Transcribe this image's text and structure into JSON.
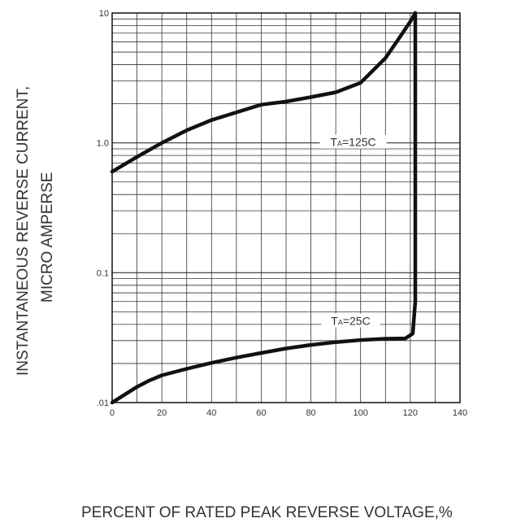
{
  "chart_data": {
    "type": "line",
    "ylabel_lines": [
      "INSTANTANEOUS REVERSE CURRENT,",
      "MICRO AMPERSE"
    ],
    "xlabel": "PERCENT OF RATED PEAK REVERSE VOLTAGE,%",
    "xlim": [
      0,
      140
    ],
    "ylim": [
      0.01,
      10
    ],
    "yscale": "log",
    "grid": true,
    "x_ticks": [
      "0",
      "20",
      "40",
      "60",
      "80",
      "100",
      "120",
      "140"
    ],
    "y_ticks": [
      ".01",
      "0.1",
      "1.0",
      "10"
    ],
    "series": [
      {
        "annotation_main": "T",
        "annotation_sub": "A",
        "annotation_rest": "=125C",
        "x": [
          0,
          10,
          20,
          30,
          40,
          50,
          60,
          70,
          80,
          90,
          100,
          110,
          115,
          120,
          122
        ],
        "y": [
          0.6,
          0.78,
          1.0,
          1.25,
          1.5,
          1.72,
          1.97,
          2.08,
          2.25,
          2.45,
          2.9,
          4.5,
          6.2,
          8.6,
          10
        ]
      },
      {
        "annotation_main": "T",
        "annotation_sub": "A",
        "annotation_rest": "=25C",
        "x": [
          0,
          5,
          10,
          15,
          20,
          30,
          40,
          50,
          60,
          70,
          80,
          90,
          100,
          110,
          118,
          121,
          122,
          122,
          122
        ],
        "y": [
          0.01,
          0.0115,
          0.0132,
          0.0148,
          0.0162,
          0.0182,
          0.0202,
          0.0222,
          0.0241,
          0.0261,
          0.0278,
          0.0292,
          0.0303,
          0.031,
          0.0312,
          0.034,
          0.06,
          1.0,
          10
        ]
      }
    ]
  }
}
